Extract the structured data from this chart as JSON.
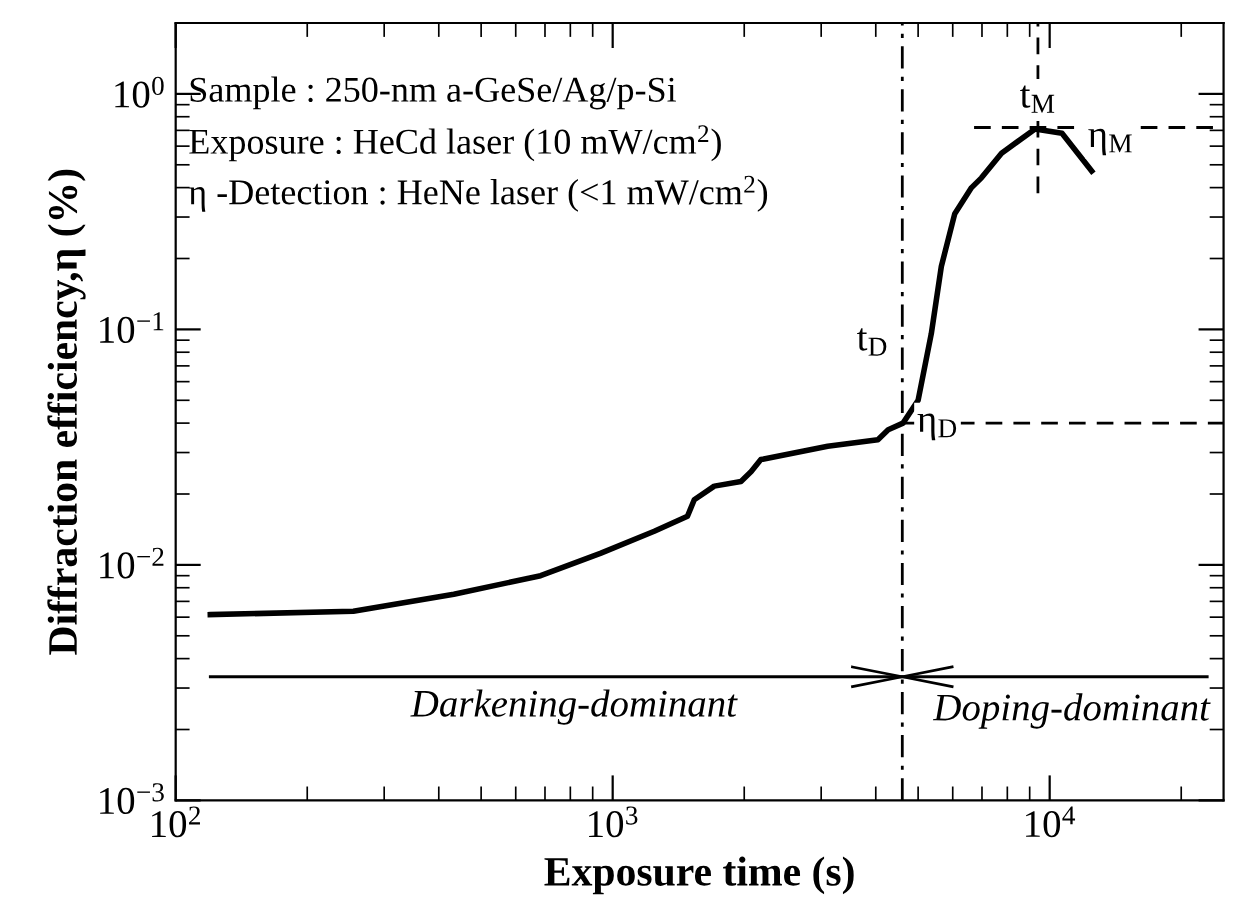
{
  "chart_data": {
    "type": "line",
    "xlabel": "Exposure time (s)",
    "ylabel": "Diffraction efficiency,η (%)",
    "log": "xy",
    "xlim": [
      100,
      25000
    ],
    "ylim": [
      0.001,
      2
    ],
    "xticks": [
      {
        "value": 100,
        "label": "10$^{2}$"
      },
      {
        "value": 1000,
        "label": "10$^{3}$"
      },
      {
        "value": 10000,
        "label": "10$^{4}$"
      }
    ],
    "yticks": [
      {
        "value": 0.001,
        "label": "10$^{−3}$"
      },
      {
        "value": 0.01,
        "label": "10$^{−2}$"
      },
      {
        "value": 0.1,
        "label": "10$^{−1}$"
      },
      {
        "value": 1,
        "label": "10$^{0}$"
      }
    ],
    "grid": false,
    "legend": false,
    "marker": "none",
    "line_style": "solid",
    "series": [
      {
        "color": "#000000",
        "x": [
          120,
          255,
          433,
          684,
          937,
          1245,
          1483,
          1537,
          1708,
          1966,
          2075,
          2183,
          3105,
          4045,
          4270,
          4617,
          5000,
          5360,
          5650,
          6065,
          6625,
          6980,
          7760,
          9260,
          10670,
          12480
        ],
        "values": [
          0.00615,
          0.00635,
          0.0075,
          0.009,
          0.0112,
          0.0139,
          0.0161,
          0.0189,
          0.0216,
          0.0226,
          0.0249,
          0.028,
          0.0319,
          0.034,
          0.0375,
          0.04,
          0.05,
          0.096,
          0.185,
          0.31,
          0.4,
          0.44,
          0.56,
          0.71,
          0.68,
          0.47
        ]
      }
    ],
    "ref_lines": [
      {
        "axis": "x",
        "value": 4600,
        "label": "t$_{D}$",
        "line_style": "dashdot",
        "color": "#000000"
      },
      {
        "axis": "y",
        "value": 0.04,
        "label": "η$_{D}$",
        "line_style": "dashed",
        "color": "#000000"
      },
      {
        "axis": "x",
        "value": 9400,
        "label": "t$_{M}$",
        "line_style": "dashed",
        "color": "#000000"
      },
      {
        "axis": "y",
        "value": 0.72,
        "label": "η$_{M}$",
        "line_style": "dashed",
        "color": "#000000"
      },
      {
        "axis": "y",
        "value": 0.00335,
        "line_style": "solid",
        "color": "#000000"
      }
    ],
    "annotations": [
      "Sample : 250-nm a-GeSe/Ag/p-Si",
      "Exposure : HeCd laser (10 mW/cm$^{2}$)",
      "η -Detection : HeNe laser (<1 mW/cm$^{2}$)",
      "Darkening-dominant",
      "Doping-dominant"
    ]
  }
}
